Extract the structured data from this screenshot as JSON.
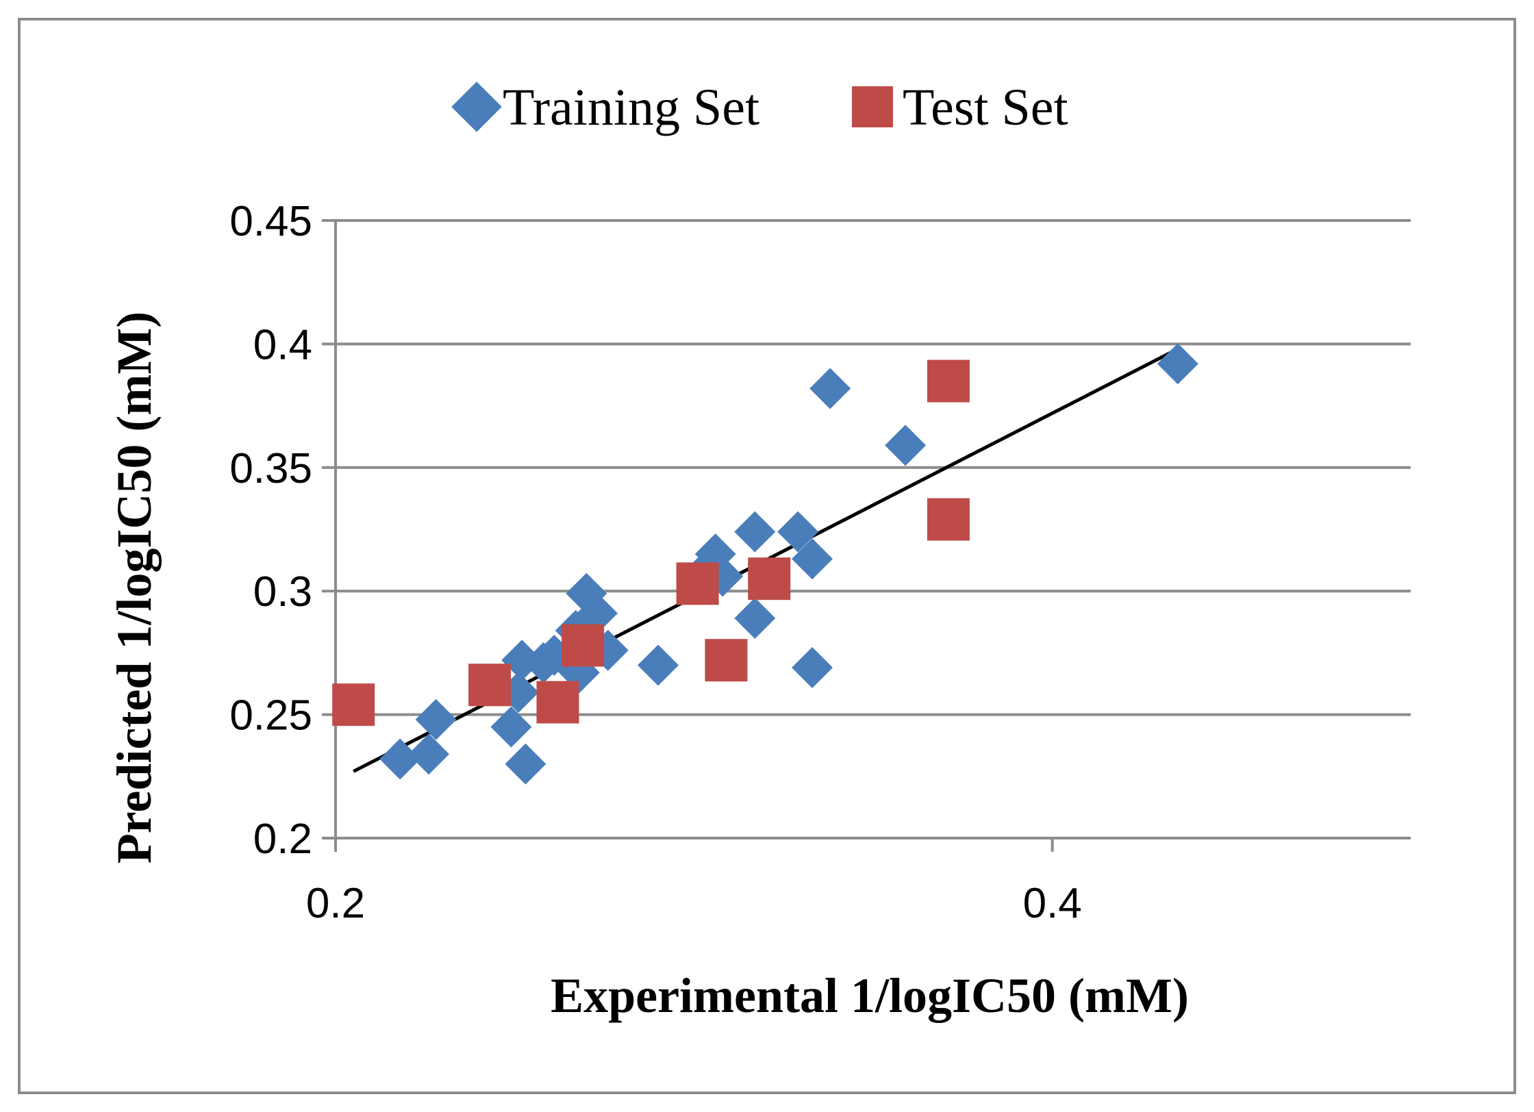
{
  "chart_data": {
    "type": "scatter",
    "title": "",
    "xlabel": "Experimental 1/logIC50 (mM)",
    "ylabel": "Predicted 1/logIC50 (mM)",
    "xlim": [
      0.2,
      0.5
    ],
    "ylim": [
      0.2,
      0.45
    ],
    "xticks": [
      0.2,
      0.4
    ],
    "xtick_labels": [
      "0.2",
      "0.4"
    ],
    "yticks": [
      0.2,
      0.25,
      0.3,
      0.35,
      0.4,
      0.45
    ],
    "ytick_labels": [
      "0.2",
      "0.25",
      "0.3",
      "0.35",
      "0.4",
      "0.45"
    ],
    "grid": "horizontal",
    "legend_position": "top",
    "series": [
      {
        "name": "Training Set",
        "marker": "diamond",
        "color": "#4a7ebb",
        "points": [
          [
            0.218,
            0.232
          ],
          [
            0.226,
            0.234
          ],
          [
            0.228,
            0.248
          ],
          [
            0.249,
            0.245
          ],
          [
            0.251,
            0.259
          ],
          [
            0.252,
            0.272
          ],
          [
            0.253,
            0.23
          ],
          [
            0.258,
            0.271
          ],
          [
            0.261,
            0.274
          ],
          [
            0.266,
            0.27
          ],
          [
            0.268,
            0.267
          ],
          [
            0.267,
            0.284
          ],
          [
            0.27,
            0.299
          ],
          [
            0.273,
            0.291
          ],
          [
            0.276,
            0.276
          ],
          [
            0.29,
            0.27
          ],
          [
            0.303,
            0.308
          ],
          [
            0.306,
            0.315
          ],
          [
            0.308,
            0.306
          ],
          [
            0.317,
            0.324
          ],
          [
            0.317,
            0.289
          ],
          [
            0.329,
            0.324
          ],
          [
            0.333,
            0.313
          ],
          [
            0.333,
            0.269
          ],
          [
            0.338,
            0.382
          ],
          [
            0.359,
            0.359
          ],
          [
            0.435,
            0.392
          ]
        ]
      },
      {
        "name": "Test Set",
        "marker": "square",
        "color": "#be4b48",
        "points": [
          [
            0.205,
            0.254
          ],
          [
            0.243,
            0.262
          ],
          [
            0.262,
            0.255
          ],
          [
            0.269,
            0.278
          ],
          [
            0.301,
            0.303
          ],
          [
            0.309,
            0.272
          ],
          [
            0.321,
            0.305
          ],
          [
            0.371,
            0.385
          ],
          [
            0.371,
            0.329
          ]
        ]
      }
    ],
    "trendline": {
      "color": "#000000",
      "from": [
        0.205,
        0.227
      ],
      "to": [
        0.435,
        0.398
      ]
    }
  }
}
